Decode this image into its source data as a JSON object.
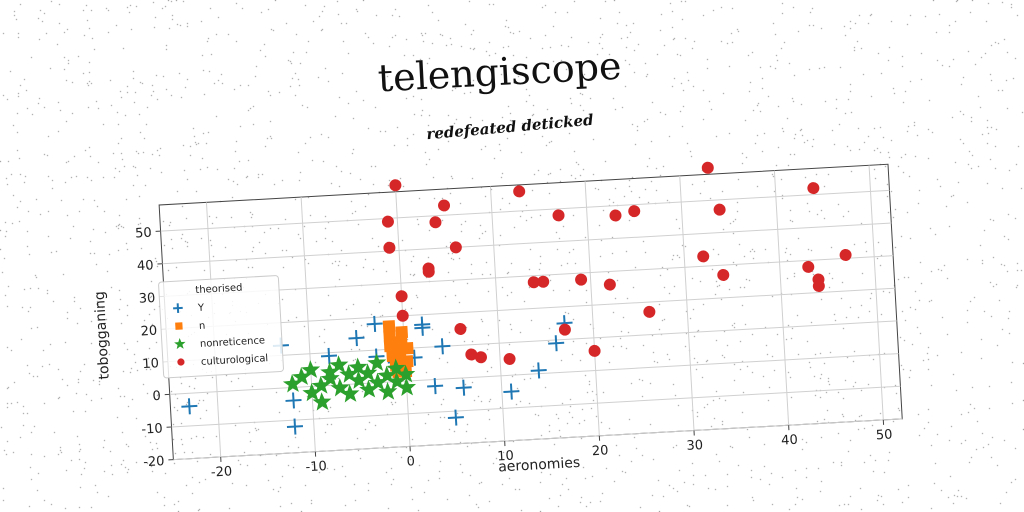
{
  "title": "telengiscope",
  "subtitle": "redefeated deticked",
  "chart_data": {
    "type": "scatter",
    "xlabel": "aeronomies",
    "ylabel": "tobogganing",
    "xlim": [
      -25,
      52
    ],
    "ylim": [
      -20,
      58
    ],
    "xticks": [
      "-20",
      "-10",
      "0",
      "10",
      "20",
      "30",
      "40",
      "50"
    ],
    "yticks": [
      "-20",
      "-10",
      "0",
      "10",
      "20",
      "30",
      "40",
      "50"
    ],
    "grid": true,
    "legend": {
      "title": "theorised",
      "placement": "center-left"
    },
    "series": [
      {
        "name": "Y",
        "marker": "plus",
        "color": "#1f77b4",
        "points": [
          [
            -23,
            -4
          ],
          [
            -13,
            13
          ],
          [
            -12,
            -4
          ],
          [
            -12,
            -12
          ],
          [
            -8,
            9
          ],
          [
            -5,
            14
          ],
          [
            -3,
            18
          ],
          [
            -3,
            8
          ],
          [
            -1,
            8
          ],
          [
            -1,
            6
          ],
          [
            1,
            7
          ],
          [
            2,
            17
          ],
          [
            2,
            16
          ],
          [
            3,
            -2
          ],
          [
            4,
            10
          ],
          [
            5,
            -12
          ],
          [
            6,
            -3
          ],
          [
            11,
            -5
          ],
          [
            14,
            1
          ],
          [
            16,
            9
          ],
          [
            17,
            15
          ]
        ]
      },
      {
        "name": "n",
        "marker": "square",
        "color": "#ff7f0e",
        "points": [
          [
            -1.5,
            17
          ],
          [
            -1.5,
            14
          ],
          [
            -1.5,
            11
          ],
          [
            -1.3,
            8
          ],
          [
            -1,
            5
          ],
          [
            -0.8,
            3
          ],
          [
            -0.5,
            6
          ],
          [
            -0.5,
            9
          ],
          [
            -0.3,
            12
          ],
          [
            -0.2,
            15
          ],
          [
            0,
            3
          ],
          [
            0.2,
            6
          ],
          [
            0.3,
            10
          ]
        ]
      },
      {
        "name": "nonreticence",
        "marker": "star",
        "color": "#2ca02c",
        "points": [
          [
            -12,
            1
          ],
          [
            -11,
            3
          ],
          [
            -10,
            -2
          ],
          [
            -10,
            5
          ],
          [
            -9,
            0
          ],
          [
            -9,
            -5
          ],
          [
            -8,
            4
          ],
          [
            -8,
            2
          ],
          [
            -7,
            -1
          ],
          [
            -7,
            6
          ],
          [
            -6,
            3
          ],
          [
            -6,
            -3
          ],
          [
            -5,
            1
          ],
          [
            -5,
            5
          ],
          [
            -4,
            -2
          ],
          [
            -4,
            3
          ],
          [
            -3,
            0
          ],
          [
            -3,
            6
          ],
          [
            -2,
            2
          ],
          [
            -2,
            -3
          ],
          [
            -1,
            4
          ],
          [
            -1,
            0
          ],
          [
            0,
            -2
          ],
          [
            0,
            2
          ]
        ]
      },
      {
        "name": "culturological",
        "marker": "circle",
        "color": "#d62728",
        "points": [
          [
            0,
            60
          ],
          [
            -1,
            49
          ],
          [
            -1,
            41
          ],
          [
            0,
            26
          ],
          [
            0,
            20
          ],
          [
            3,
            33
          ],
          [
            3,
            34
          ],
          [
            4,
            48
          ],
          [
            5,
            53
          ],
          [
            6,
            15
          ],
          [
            6,
            40
          ],
          [
            7,
            7
          ],
          [
            8,
            6
          ],
          [
            11,
            5
          ],
          [
            13,
            56
          ],
          [
            14,
            28
          ],
          [
            15,
            28
          ],
          [
            17,
            48
          ],
          [
            17,
            13
          ],
          [
            19,
            28
          ],
          [
            20,
            6
          ],
          [
            22,
            26
          ],
          [
            23,
            47
          ],
          [
            25,
            48
          ],
          [
            26,
            17
          ],
          [
            32,
            33
          ],
          [
            33,
            60
          ],
          [
            34,
            47
          ],
          [
            34,
            27
          ],
          [
            43,
            28
          ],
          [
            44,
            24
          ],
          [
            44,
            22
          ],
          [
            44,
            52
          ],
          [
            47,
            31
          ]
        ]
      }
    ]
  }
}
